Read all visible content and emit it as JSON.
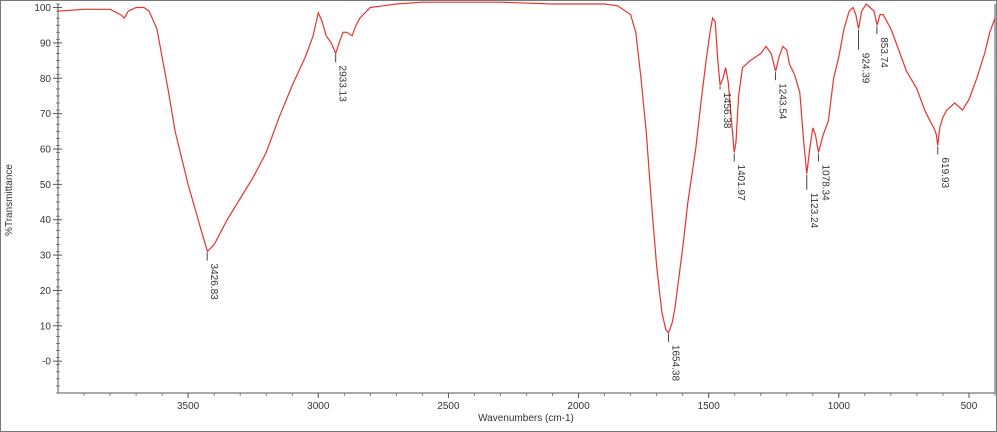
{
  "chart_data": {
    "type": "line",
    "title": "",
    "xlabel": "Wavenumbers (cm-1)",
    "ylabel": "%Transmittance",
    "xlim": [
      4000,
      400
    ],
    "ylim": [
      -9,
      101
    ],
    "x_reversed": true,
    "grid": false,
    "line_color": "#e8332f",
    "x_ticks": [
      3500,
      3000,
      2500,
      2000,
      1500,
      1000,
      500
    ],
    "x_tick_labels": [
      "3500",
      "3000",
      "2500",
      "2000",
      "1500",
      "1000",
      "500"
    ],
    "y_ticks": [
      100,
      90,
      80,
      70,
      60,
      50,
      40,
      30,
      20,
      10,
      0
    ],
    "y_tick_labels": [
      "100",
      "90",
      "80",
      "70",
      "60",
      "50",
      "40",
      "30",
      "20",
      "10",
      "-0"
    ],
    "series": [
      {
        "x": [
          4000,
          3900,
          3800,
          3760,
          3745,
          3730,
          3700,
          3670,
          3650,
          3620,
          3600,
          3575,
          3550,
          3500,
          3450,
          3426,
          3400,
          3350,
          3300,
          3250,
          3200,
          3150,
          3100,
          3050,
          3020,
          3000,
          2985,
          2970,
          2950,
          2933,
          2920,
          2905,
          2890,
          2870,
          2855,
          2840,
          2800,
          2700,
          2600,
          2500,
          2300,
          2100,
          2000,
          1900,
          1850,
          1800,
          1780,
          1760,
          1740,
          1720,
          1700,
          1680,
          1665,
          1654,
          1640,
          1630,
          1600,
          1580,
          1550,
          1530,
          1510,
          1495,
          1485,
          1475,
          1465,
          1456,
          1445,
          1435,
          1425,
          1410,
          1402,
          1395,
          1385,
          1370,
          1355,
          1340,
          1320,
          1300,
          1280,
          1260,
          1243,
          1230,
          1215,
          1200,
          1190,
          1170,
          1150,
          1135,
          1123,
          1112,
          1100,
          1090,
          1078,
          1060,
          1040,
          1020,
          1000,
          980,
          960,
          945,
          935,
          924,
          912,
          895,
          880,
          865,
          853,
          842,
          830,
          815,
          800,
          770,
          740,
          700,
          670,
          650,
          635,
          625,
          620,
          612,
          600,
          585,
          570,
          555,
          540,
          525,
          500,
          470,
          440,
          420,
          400
        ],
        "y": [
          99,
          99.5,
          99.5,
          98,
          97,
          99,
          100,
          100,
          99,
          94,
          86,
          76,
          65,
          50,
          37,
          31,
          33,
          40,
          46,
          52,
          59,
          69,
          78,
          86,
          92,
          98.5,
          96,
          92,
          90,
          87,
          90,
          93,
          93,
          92,
          95,
          97,
          100,
          101,
          101.5,
          101.5,
          101.5,
          101,
          101,
          101,
          100.5,
          98,
          93,
          80,
          65,
          45,
          27,
          14,
          9,
          8,
          11,
          15,
          32,
          45,
          60,
          73,
          85,
          93,
          97,
          96,
          85,
          78,
          80,
          83,
          79,
          66,
          59,
          62,
          75,
          83,
          84,
          85,
          86,
          87,
          89,
          87,
          82,
          86,
          89,
          88,
          84,
          81,
          76,
          62,
          53,
          60,
          66,
          64,
          59,
          64,
          68,
          80,
          86,
          94,
          99,
          100,
          98,
          94,
          99,
          101,
          100,
          99,
          95,
          98,
          98,
          96,
          94,
          88,
          82,
          77,
          71,
          68,
          66,
          64,
          61,
          66,
          69,
          71,
          72,
          73,
          72,
          71,
          74,
          80,
          87,
          93,
          97
        ]
      }
    ],
    "peaks": [
      {
        "x": 3426.83,
        "y": 31,
        "label": "3426.83"
      },
      {
        "x": 2933.13,
        "y": 87,
        "label": "2933.13"
      },
      {
        "x": 1654.38,
        "y": 8,
        "label": "1654.38"
      },
      {
        "x": 1456.38,
        "y": 78,
        "label": "1456.38"
      },
      {
        "x": 1401.97,
        "y": 59,
        "label": "1401.97"
      },
      {
        "x": 1243.54,
        "y": 82,
        "label": "1243.54"
      },
      {
        "x": 1123.24,
        "y": 53,
        "label": "1123.24"
      },
      {
        "x": 1078.34,
        "y": 59,
        "label": "1078.34"
      },
      {
        "x": 924.39,
        "y": 94,
        "label": "924.39"
      },
      {
        "x": 853.74,
        "y": 95,
        "label": "853.74"
      },
      {
        "x": 619.93,
        "y": 61,
        "label": "619.93"
      }
    ]
  }
}
